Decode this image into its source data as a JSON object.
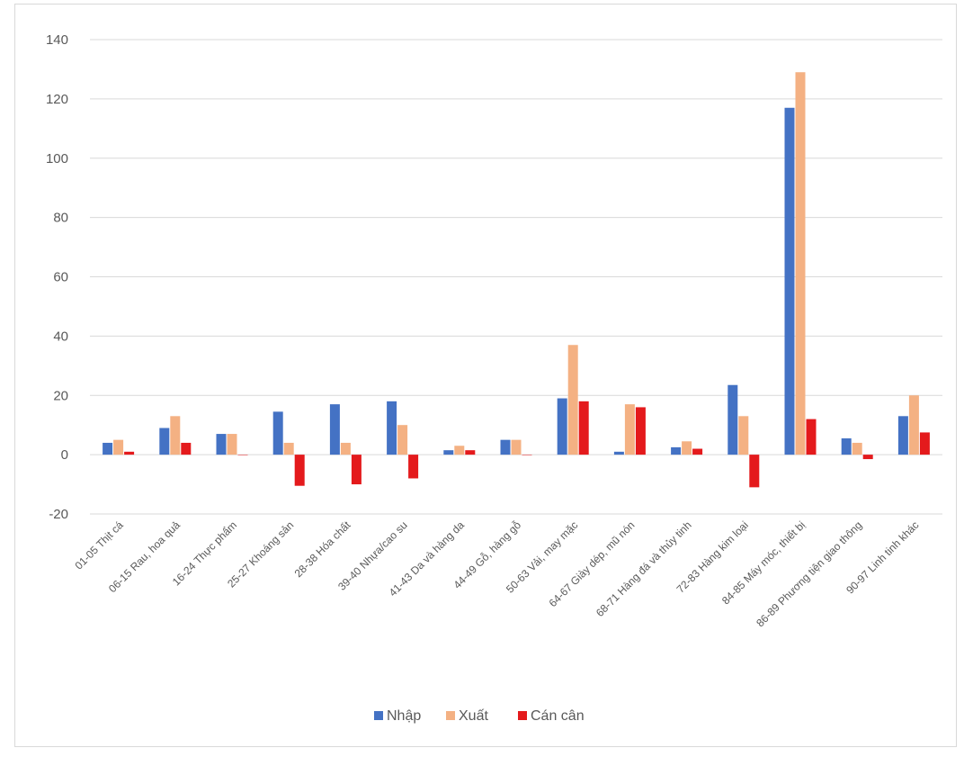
{
  "chart_data": {
    "type": "bar",
    "title": "",
    "xlabel": "",
    "ylabel": "",
    "ylim": [
      -20,
      140
    ],
    "yticks": [
      -20,
      0,
      20,
      40,
      60,
      80,
      100,
      120,
      140
    ],
    "grid": true,
    "legend_position": "bottom",
    "categories": [
      "01-05 Thịt cá",
      "06-15 Rau, hoa quả",
      "16-24 Thực phẩm",
      "25-27 Khoáng sản",
      "28-38 Hóa chất",
      "39-40 Nhựa/cao su",
      "41-43 Da và hàng da",
      "44-49 Gỗ, hàng gỗ",
      "50-63 Vải, may mặc",
      "64-67 Giày dép, mũ nón",
      "68-71 Hàng đá và thủy tinh",
      "72-83 Hàng kim loại",
      "84-85 Máy móc, thiết bị",
      "86-89 Phương tiện giao thông",
      "90-97 Linh tinh khác"
    ],
    "series": [
      {
        "name": "Nhập",
        "color": "#4472c4",
        "values": [
          4,
          9,
          7,
          14.5,
          17,
          18,
          1.5,
          5,
          19,
          1,
          2.5,
          23.5,
          117,
          5.5,
          13
        ]
      },
      {
        "name": "Xuất",
        "color": "#f4b183",
        "values": [
          5,
          13,
          7,
          4,
          4,
          10,
          3,
          5,
          37,
          17,
          4.5,
          13,
          129,
          4,
          20
        ]
      },
      {
        "name": "Cán cân",
        "color": "#e41a1c",
        "values": [
          1,
          4,
          0,
          -10.5,
          -10,
          -8,
          1.5,
          0,
          18,
          16,
          2,
          -11,
          12,
          -1.5,
          7.5
        ]
      }
    ]
  }
}
